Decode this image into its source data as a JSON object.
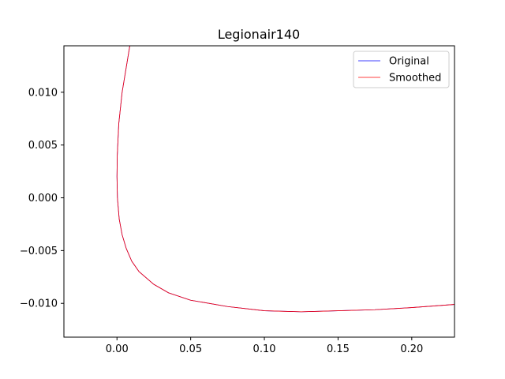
{
  "chart_data": {
    "type": "line",
    "title": "Legionair140",
    "xlabel": "",
    "ylabel": "",
    "xlim": [
      -0.036,
      0.229
    ],
    "ylim": [
      -0.0132,
      0.0144
    ],
    "x_ticks": [
      0.0,
      0.05,
      0.1,
      0.15,
      0.2
    ],
    "x_tick_labels": [
      "0.00",
      "0.05",
      "0.10",
      "0.15",
      "0.20"
    ],
    "y_ticks": [
      0.01,
      0.005,
      0.0,
      -0.005,
      -0.01
    ],
    "y_tick_labels": [
      "0.010",
      "0.005",
      "0.000",
      "−0.005",
      "−0.010"
    ],
    "grid": false,
    "legend_position": "top-right",
    "series": [
      {
        "name": "Original",
        "color": "#0000ff",
        "points": [
          [
            0.0087,
            0.0144
          ],
          [
            0.0035,
            0.01
          ],
          [
            0.0012,
            0.007
          ],
          [
            0.0002,
            0.004
          ],
          [
            0.0,
            0.002
          ],
          [
            0.0003,
            0.0
          ],
          [
            0.0015,
            -0.002
          ],
          [
            0.0035,
            -0.0035
          ],
          [
            0.0063,
            -0.0048
          ],
          [
            0.01,
            -0.006
          ],
          [
            0.015,
            -0.007
          ],
          [
            0.025,
            -0.0082
          ],
          [
            0.035,
            -0.009
          ],
          [
            0.05,
            -0.0097
          ],
          [
            0.075,
            -0.0103
          ],
          [
            0.1,
            -0.0107
          ],
          [
            0.125,
            -0.0108
          ],
          [
            0.15,
            -0.0107
          ],
          [
            0.175,
            -0.0106
          ],
          [
            0.2,
            -0.0104
          ],
          [
            0.229,
            -0.0101
          ]
        ]
      },
      {
        "name": "Smoothed",
        "color": "#ff0000",
        "points": [
          [
            0.0087,
            0.0144
          ],
          [
            0.0035,
            0.01
          ],
          [
            0.0012,
            0.007
          ],
          [
            0.0002,
            0.004
          ],
          [
            0.0,
            0.002
          ],
          [
            0.0003,
            0.0
          ],
          [
            0.0015,
            -0.002
          ],
          [
            0.0035,
            -0.0035
          ],
          [
            0.0063,
            -0.0048
          ],
          [
            0.01,
            -0.006
          ],
          [
            0.015,
            -0.007
          ],
          [
            0.025,
            -0.0082
          ],
          [
            0.035,
            -0.009
          ],
          [
            0.05,
            -0.0097
          ],
          [
            0.075,
            -0.0103
          ],
          [
            0.1,
            -0.0107
          ],
          [
            0.125,
            -0.0108
          ],
          [
            0.15,
            -0.0107
          ],
          [
            0.175,
            -0.0106
          ],
          [
            0.2,
            -0.0104
          ],
          [
            0.229,
            -0.0101
          ]
        ]
      }
    ]
  }
}
